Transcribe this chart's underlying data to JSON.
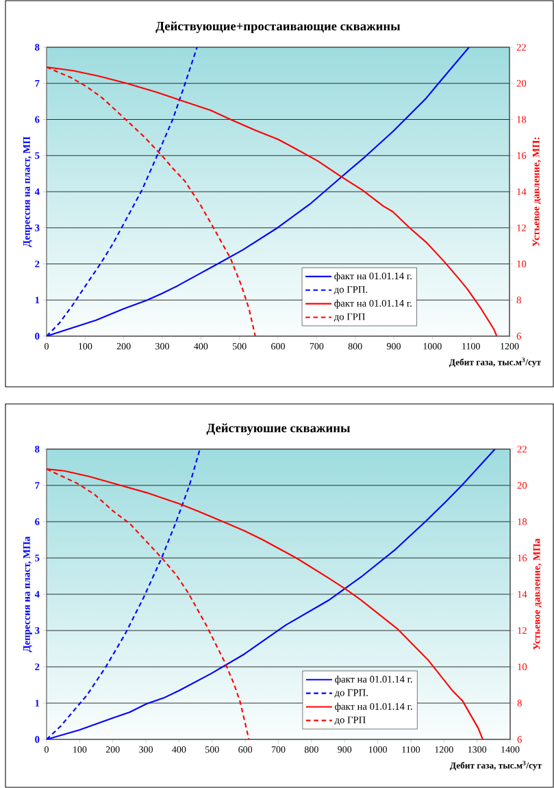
{
  "chart_data": [
    {
      "type": "line",
      "title": "Действующие+простаивающие скважины",
      "xlabel": "Дебит газа, тыс.м$^{3}$/сут",
      "ylabel": "Депрессия на пласт, МП",
      "y2label": "Устьевое давление, МП:",
      "xlim": [
        0,
        1200
      ],
      "xticks": [
        0,
        100,
        200,
        300,
        400,
        500,
        600,
        700,
        800,
        900,
        1000,
        1100,
        1200
      ],
      "ylim": [
        0,
        8
      ],
      "yticks": [
        0,
        1,
        2,
        3,
        4,
        5,
        6,
        7,
        8
      ],
      "y2lim": [
        6,
        22
      ],
      "y2ticks": [
        6,
        8,
        10,
        12,
        14,
        16,
        18,
        20,
        22
      ],
      "grid": "y",
      "legend": "bottom right",
      "marker": "none",
      "series": [
        {
          "name": "факт на 01.01.14 г.",
          "color": "#0000ff",
          "line_style": "solid",
          "x": [
            0,
            128,
            200,
            259,
            299,
            339,
            390,
            445,
            509,
            600,
            683,
            770,
            826,
            897,
            929,
            984,
            1016,
            1095
          ],
          "values": [
            0,
            0.44,
            0.76,
            0.99,
            1.18,
            1.39,
            1.69,
            2.01,
            2.39,
            3.01,
            3.66,
            4.46,
            4.97,
            5.66,
            6.0,
            6.59,
            7.0,
            8
          ]
        },
        {
          "name": "до ГРП.",
          "color": "#0000ff",
          "line_style": "dashed",
          "x": [
            0,
            33,
            65,
            105,
            140,
            172,
            204,
            247,
            287,
            327,
            358,
            390
          ],
          "values": [
            0,
            0.36,
            0.82,
            1.46,
            2.01,
            2.56,
            3.19,
            4.04,
            5.01,
            6.0,
            6.96,
            8
          ]
        },
        {
          "name": "факт на 01.01.14 г.",
          "color": "#ff0000",
          "line_style": "solid",
          "axis": "y2",
          "x": [
            0,
            69,
            136,
            208,
            287,
            342,
            426,
            477,
            541,
            600,
            644,
            703,
            766,
            818,
            873,
            897,
            941,
            984,
            1032,
            1068,
            1091,
            1127,
            1159,
            1167
          ],
          "values": [
            20.9,
            20.7,
            20.4,
            20.0,
            19.5,
            19.1,
            18.5,
            18.0,
            17.4,
            16.9,
            16.4,
            15.7,
            14.8,
            14.1,
            13.2,
            12.9,
            12.0,
            11.2,
            10.1,
            9.2,
            8.6,
            7.5,
            6.4,
            6
          ]
        },
        {
          "name": "до ГРП",
          "color": "#ff0000",
          "line_style": "dashed",
          "axis": "y2",
          "x": [
            0,
            65,
            105,
            144,
            200,
            255,
            303,
            327,
            358,
            398,
            438,
            477,
            505,
            525,
            541
          ],
          "values": [
            20.9,
            20.3,
            19.8,
            19.2,
            18.1,
            17.0,
            15.9,
            15.3,
            14.6,
            13.3,
            11.8,
            10.3,
            8.8,
            7.5,
            6
          ]
        }
      ]
    },
    {
      "type": "line",
      "title": "Действуюшие скважины",
      "xlabel": "Дебит газа, тыс.м$^{3}$/сут",
      "ylabel": "Депрессия на пласт, МПа",
      "y2label": "Устьевое давление, МПа",
      "xlim": [
        0,
        1400
      ],
      "xticks": [
        0,
        100,
        200,
        300,
        400,
        500,
        600,
        700,
        800,
        900,
        1000,
        1100,
        1200,
        1300,
        1400
      ],
      "ylim": [
        0,
        8
      ],
      "yticks": [
        0,
        1,
        2,
        3,
        4,
        5,
        6,
        7,
        8
      ],
      "y2lim": [
        6,
        22
      ],
      "y2ticks": [
        6,
        8,
        10,
        12,
        14,
        16,
        18,
        20,
        22
      ],
      "grid": "y",
      "legend": "bottom right",
      "marker": "none",
      "series": [
        {
          "name": "факт на 01.01.14 г.",
          "color": "#0000ff",
          "line_style": "solid",
          "x": [
            0,
            99,
            200,
            251,
            302,
            353,
            399,
            496,
            597,
            722,
            851,
            953,
            1054,
            1146,
            1202,
            1253,
            1354
          ],
          "values": [
            0,
            0.26,
            0.59,
            0.75,
            0.98,
            1.14,
            1.34,
            1.81,
            2.35,
            3.15,
            3.83,
            4.5,
            5.24,
            6.02,
            6.52,
            6.99,
            8
          ]
        },
        {
          "name": "до ГРП.",
          "color": "#0000ff",
          "line_style": "dashed",
          "x": [
            0,
            43,
            94,
            122,
            177,
            237,
            293,
            348,
            390,
            431,
            463
          ],
          "values": [
            0,
            0.37,
            0.92,
            1.22,
            1.97,
            2.9,
            3.91,
            5.01,
            5.97,
            6.99,
            8
          ]
        },
        {
          "name": "факт на 01.01.14 г.",
          "color": "#ff0000",
          "line_style": "solid",
          "axis": "y2",
          "x": [
            0,
            53,
            127,
            224,
            302,
            399,
            454,
            533,
            597,
            653,
            754,
            851,
            902,
            948,
            1059,
            1151,
            1225,
            1257,
            1304,
            1317
          ],
          "values": [
            20.9,
            20.8,
            20.5,
            20.0,
            19.6,
            19.0,
            18.6,
            18.0,
            17.5,
            17.0,
            16.0,
            14.9,
            14.3,
            13.7,
            12.1,
            10.4,
            8.7,
            8.1,
            6.6,
            6
          ]
        },
        {
          "name": "до ГРП",
          "color": "#ff0000",
          "line_style": "dashed",
          "axis": "y2",
          "x": [
            0,
            94,
            145,
            200,
            251,
            302,
            348,
            390,
            427,
            482,
            537,
            565,
            584,
            597,
            611
          ],
          "values": [
            20.9,
            20.1,
            19.5,
            18.6,
            17.9,
            16.9,
            16.0,
            15.1,
            14.1,
            12.3,
            10.3,
            9.1,
            8.1,
            7.1,
            6
          ]
        }
      ]
    }
  ]
}
